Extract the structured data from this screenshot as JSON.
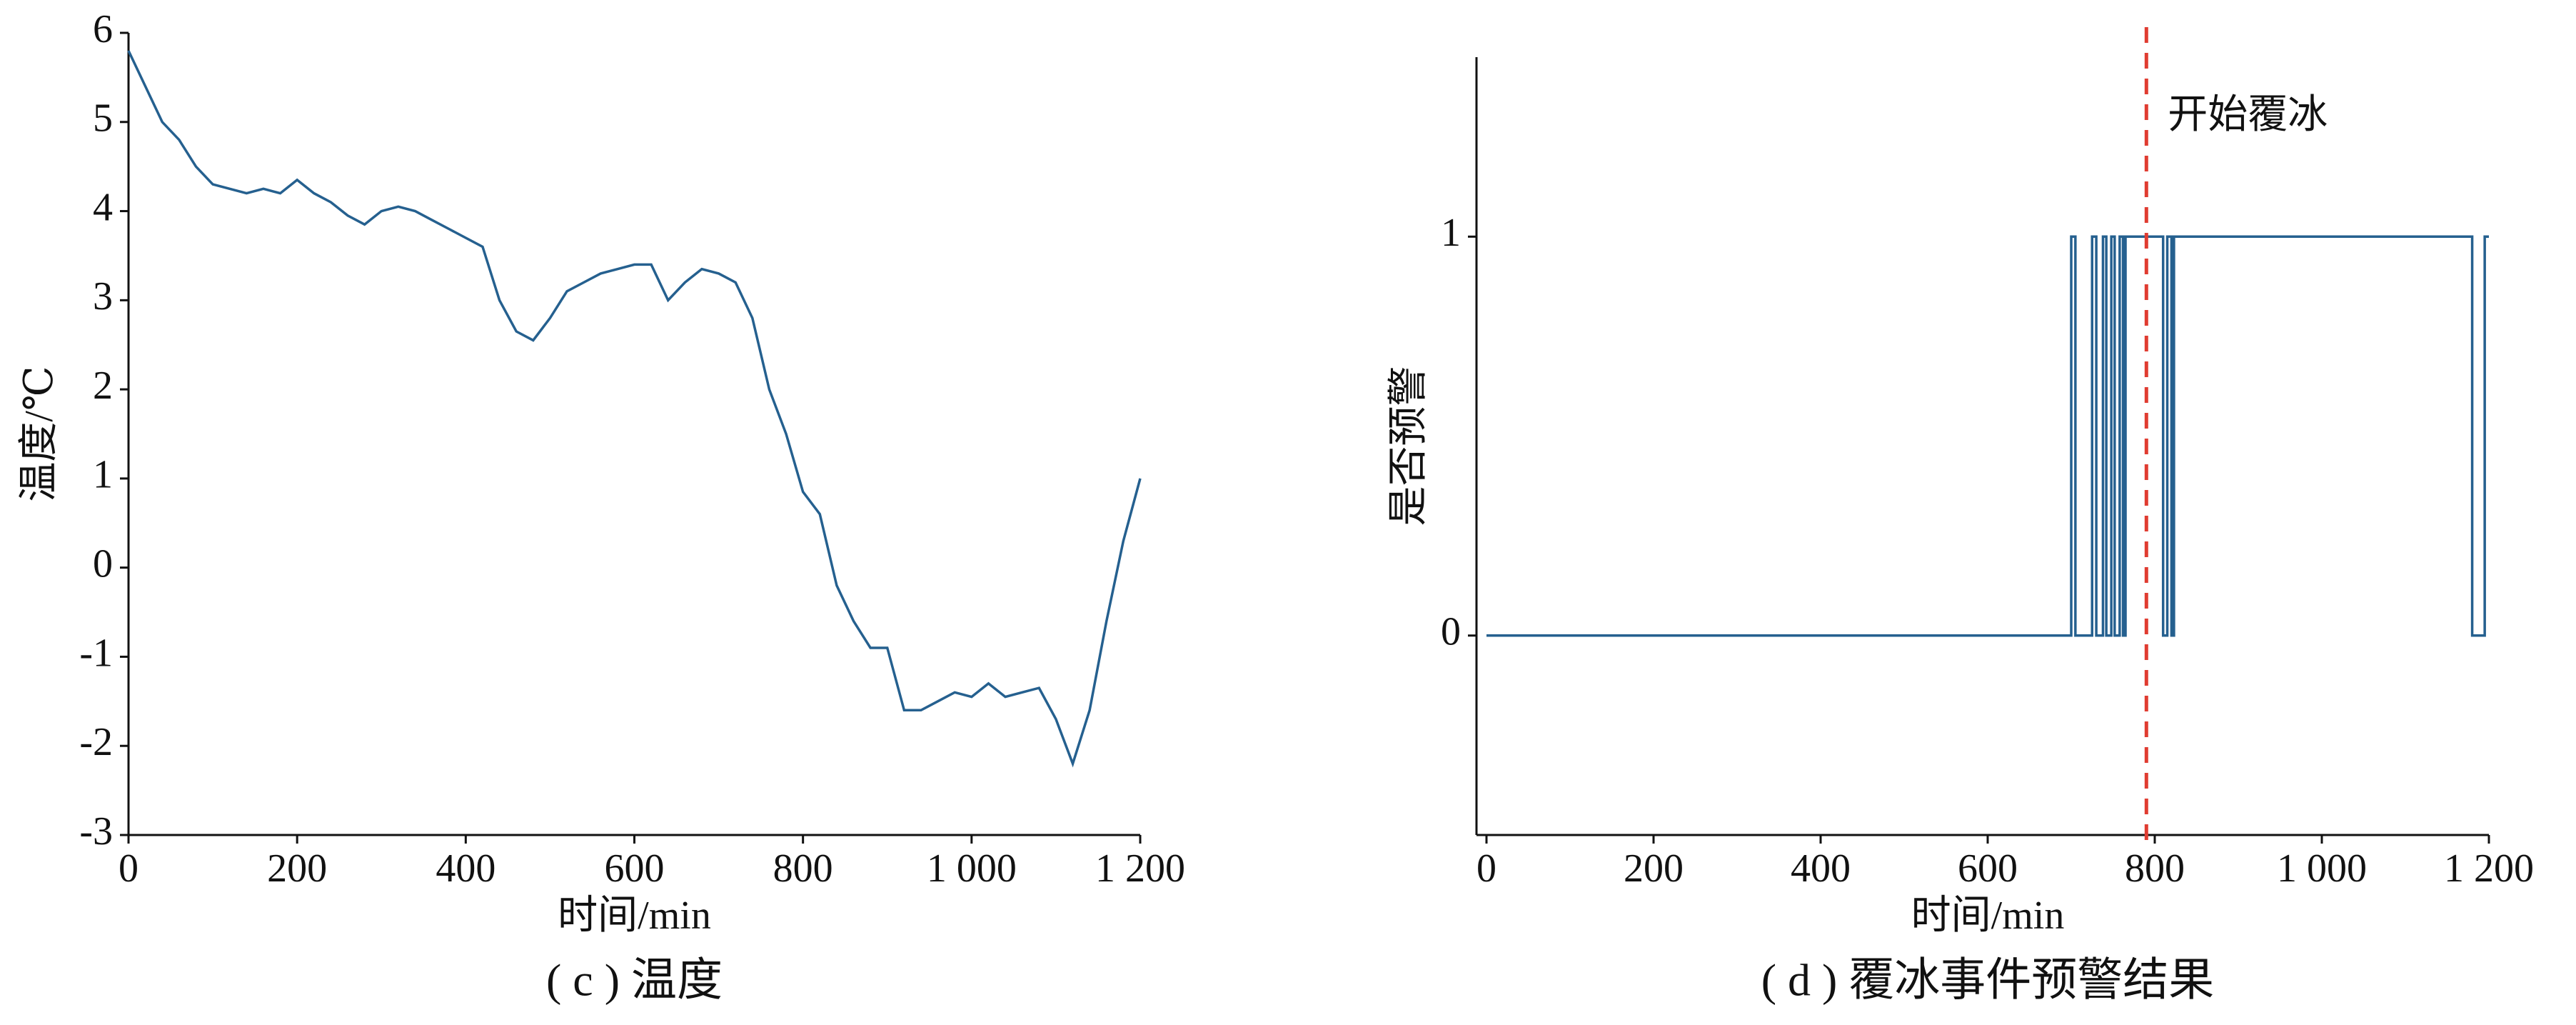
{
  "chart_data": [
    {
      "type": "line",
      "caption": "( c ) 温度",
      "xlabel": "时间/min",
      "ylabel": "温度/℃",
      "x": [
        0,
        20,
        40,
        60,
        80,
        100,
        120,
        140,
        160,
        180,
        200,
        220,
        240,
        260,
        280,
        300,
        320,
        340,
        360,
        380,
        400,
        420,
        440,
        460,
        480,
        500,
        520,
        540,
        560,
        580,
        600,
        620,
        640,
        660,
        680,
        700,
        720,
        740,
        760,
        780,
        800,
        820,
        840,
        860,
        880,
        900,
        920,
        940,
        960,
        980,
        1000,
        1020,
        1040,
        1060,
        1080,
        1100,
        1120,
        1140,
        1160,
        1180,
        1200
      ],
      "series": [
        {
          "color": "#25608f",
          "values": [
            5.8,
            5.4,
            5.0,
            4.8,
            4.5,
            4.3,
            4.25,
            4.2,
            4.25,
            4.2,
            4.35,
            4.2,
            4.1,
            3.95,
            3.85,
            4.0,
            4.05,
            4.0,
            3.9,
            3.8,
            3.7,
            3.6,
            3.0,
            2.65,
            2.55,
            2.8,
            3.1,
            3.2,
            3.3,
            3.35,
            3.4,
            3.4,
            3.0,
            3.2,
            3.35,
            3.3,
            3.2,
            2.8,
            2.0,
            1.5,
            0.85,
            0.6,
            -0.2,
            -0.6,
            -0.9,
            -0.9,
            -1.6,
            -1.6,
            -1.5,
            -1.4,
            -1.45,
            -1.3,
            -1.45,
            -1.4,
            -1.35,
            -1.7,
            -2.2,
            -1.6,
            -0.6,
            0.3,
            1.0
          ]
        }
      ],
      "xlim": [
        0,
        1200
      ],
      "xticks": [
        0,
        200,
        400,
        600,
        800,
        {
          "value": 1000,
          "label": "1 000"
        },
        {
          "value": 1200,
          "label": "1 200"
        }
      ],
      "ylim": [
        -3,
        6
      ],
      "yticks": [
        -3,
        -2,
        -1,
        0,
        1,
        2,
        3,
        4,
        5,
        6
      ]
    },
    {
      "type": "line",
      "caption": "( d ) 覆冰事件预警结果",
      "xlabel": "时间/min",
      "ylabel": "是否预警",
      "x": [
        0,
        700,
        700,
        705,
        705,
        725,
        725,
        730,
        730,
        738,
        738,
        742,
        742,
        748,
        748,
        752,
        752,
        758,
        758,
        762,
        762,
        765,
        765,
        810,
        810,
        815,
        815,
        820,
        820,
        823,
        823,
        1180,
        1180,
        1195,
        1195,
        1200
      ],
      "series": [
        {
          "color": "#25608f",
          "values": [
            0,
            0,
            1,
            1,
            0,
            0,
            1,
            1,
            0,
            0,
            1,
            1,
            0,
            0,
            1,
            1,
            0,
            0,
            1,
            1,
            0,
            0,
            1,
            1,
            0,
            0,
            1,
            1,
            0,
            0,
            1,
            1,
            0,
            0,
            1,
            1
          ]
        }
      ],
      "xlim": [
        0,
        1200
      ],
      "xticks": [
        0,
        200,
        400,
        600,
        800,
        {
          "value": 1000,
          "label": "1 000"
        },
        {
          "value": 1200,
          "label": "1 200"
        }
      ],
      "ylim": [
        -0.5,
        1.45
      ],
      "yticks": [
        0,
        1
      ],
      "annotation": {
        "x": 790,
        "label": "开始覆冰",
        "color": "#e03c31"
      }
    }
  ]
}
